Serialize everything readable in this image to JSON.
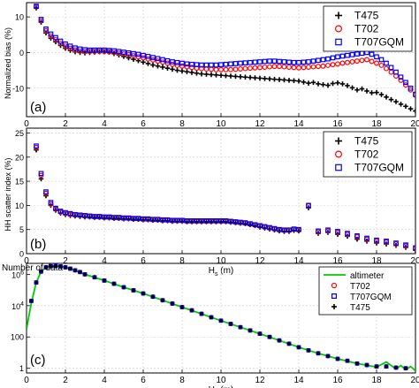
{
  "chart_data": [
    {
      "type": "scatter",
      "panel_label": "(a)",
      "ylabel": "Normalized bias (%)",
      "xlim": [
        0,
        20
      ],
      "ylim": [
        -18,
        14
      ],
      "x_ticks": [
        0,
        2,
        4,
        6,
        8,
        10,
        12,
        14,
        16,
        18,
        20
      ],
      "y_ticks": [
        10,
        0,
        -10
      ],
      "y_tick_labels": [
        "10",
        "0",
        "-10"
      ],
      "grid": true,
      "legend_position": "top-right",
      "x": [
        0.5,
        0.75,
        1.0,
        1.25,
        1.5,
        1.75,
        2.0,
        2.25,
        2.5,
        2.75,
        3.0,
        3.25,
        3.5,
        3.75,
        4.0,
        4.25,
        4.5,
        4.75,
        5.0,
        5.25,
        5.5,
        5.75,
        6.0,
        6.25,
        6.5,
        6.75,
        7.0,
        7.25,
        7.5,
        7.75,
        8.0,
        8.25,
        8.5,
        8.75,
        9.0,
        9.25,
        9.5,
        9.75,
        10.0,
        10.25,
        10.5,
        10.75,
        11.0,
        11.25,
        11.5,
        11.75,
        12.0,
        12.25,
        12.5,
        12.75,
        13.0,
        13.25,
        13.5,
        13.75,
        14.0,
        14.25,
        14.5,
        14.75,
        15.0,
        15.25,
        15.5,
        15.75,
        16.0,
        16.25,
        16.5,
        16.75,
        17.0,
        17.25,
        17.5,
        17.75,
        18.0,
        18.25,
        18.5,
        18.75,
        19.0,
        19.25,
        19.5,
        19.75,
        20.0
      ],
      "series": [
        {
          "name": "T475",
          "marker": "plus",
          "color": "#000000",
          "values": [
            12.5,
            8.5,
            5.5,
            4,
            3,
            2,
            1.2,
            0.6,
            0.2,
            0,
            -0.1,
            0,
            0.1,
            0.2,
            0.2,
            0.1,
            -0.3,
            -0.7,
            -1.1,
            -1.5,
            -1.9,
            -2.3,
            -2.7,
            -3.1,
            -3.5,
            -3.8,
            -4.1,
            -4.4,
            -4.7,
            -5,
            -5.2,
            -5.4,
            -5.6,
            -5.8,
            -6,
            -6.1,
            -6.2,
            -6.3,
            -6.4,
            -6.5,
            -6.6,
            -6.7,
            -6.8,
            -6.9,
            -7,
            -7.1,
            -7.2,
            -7.3,
            -7.4,
            -7.5,
            -7.6,
            -7.7,
            -7.8,
            -7.9,
            -8,
            -8.3,
            -8.6,
            -8.4,
            -8.8,
            -9,
            -9.2,
            -8.7,
            -8.5,
            -8.8,
            -9.3,
            -9.9,
            -10.5,
            -10.2,
            -10.8,
            -11.3,
            -11.2,
            -11.8,
            -12.5,
            -13.2,
            -13.8,
            -14.5,
            -15.1,
            -15.8,
            -16.4
          ]
        },
        {
          "name": "T702",
          "marker": "circle",
          "color": "#ff0000",
          "values": [
            12.8,
            8.9,
            6.1,
            4.6,
            3.6,
            2.6,
            1.8,
            1.2,
            0.7,
            0.4,
            0.3,
            0.3,
            0.3,
            0.3,
            0.3,
            0.2,
            0,
            -0.2,
            -0.4,
            -0.6,
            -0.9,
            -1.2,
            -1.5,
            -1.8,
            -2.1,
            -2.4,
            -2.7,
            -3,
            -3.3,
            -3.6,
            -3.8,
            -4,
            -4.2,
            -4.4,
            -4.5,
            -4.6,
            -4.7,
            -4.8,
            -4.8,
            -4.8,
            -4.8,
            -4.7,
            -4.6,
            -4.5,
            -4.4,
            -4.3,
            -4.2,
            -4.1,
            -4.0,
            -3.9,
            -3.9,
            -4.0,
            -4.1,
            -4.2,
            -4.3,
            -4.2,
            -4.1,
            -4.0,
            -3.9,
            -3.8,
            -3.6,
            -3.4,
            -3.2,
            -3.0,
            -2.8,
            -2.6,
            -2.4,
            -2.2,
            -2.0,
            -2.5,
            -3.0,
            -3.6,
            -4.5,
            -5.5,
            -6.6,
            -7.8,
            -9.1,
            -10.5,
            -12.0
          ]
        },
        {
          "name": "T707GQM",
          "marker": "square",
          "color": "#0000ff",
          "values": [
            13,
            9.3,
            6.6,
            5.2,
            4.2,
            3.2,
            2.4,
            1.8,
            1.3,
            1.0,
            0.8,
            0.7,
            0.7,
            0.7,
            0.7,
            0.6,
            0.5,
            0.3,
            0.1,
            -0.1,
            -0.3,
            -0.5,
            -0.8,
            -1.1,
            -1.4,
            -1.7,
            -2.0,
            -2.3,
            -2.6,
            -2.8,
            -3.0,
            -3.2,
            -3.3,
            -3.4,
            -3.5,
            -3.5,
            -3.5,
            -3.5,
            -3.4,
            -3.3,
            -3.2,
            -3.1,
            -3.0,
            -2.9,
            -2.8,
            -2.7,
            -2.6,
            -2.5,
            -2.4,
            -2.4,
            -2.5,
            -2.6,
            -2.7,
            -2.8,
            -2.8,
            -2.7,
            -2.6,
            -2.4,
            -2.2,
            -2.0,
            -1.8,
            -1.5,
            -1.2,
            -1.0,
            -0.8,
            -0.6,
            -0.4,
            -0.2,
            0.0,
            -0.5,
            -1.2,
            -2.0,
            -3.0,
            -4.2,
            -5.5,
            -6.9,
            -8.4,
            -10.0,
            -11.7
          ]
        }
      ]
    },
    {
      "type": "scatter",
      "panel_label": "(b)",
      "ylabel": "HH scatter index (%)",
      "xlabel": "H",
      "xlabel_subscript": "s",
      "xlabel_unit": " (m)",
      "xlim": [
        0,
        20
      ],
      "ylim": [
        0,
        26
      ],
      "x_ticks": [
        0,
        2,
        4,
        6,
        8,
        10,
        12,
        14,
        16,
        18,
        20
      ],
      "y_ticks": [
        0,
        5,
        10,
        15,
        20,
        25
      ],
      "grid": true,
      "legend_position": "top-right",
      "x": [
        0.5,
        0.75,
        1.0,
        1.25,
        1.5,
        1.75,
        2.0,
        2.25,
        2.5,
        2.75,
        3.0,
        3.25,
        3.5,
        3.75,
        4.0,
        4.25,
        4.5,
        4.75,
        5.0,
        5.25,
        5.5,
        5.75,
        6.0,
        6.25,
        6.5,
        6.75,
        7.0,
        7.25,
        7.5,
        7.75,
        8.0,
        8.25,
        8.5,
        8.75,
        9.0,
        9.25,
        9.5,
        9.75,
        10.0,
        10.25,
        10.5,
        10.75,
        11.0,
        11.25,
        11.5,
        11.75,
        12.0,
        12.25,
        12.5,
        12.75,
        13.0,
        13.25,
        13.5,
        13.75,
        14.0,
        14.5,
        15.0,
        15.5,
        16.0,
        16.5,
        17.0,
        17.5,
        18.0,
        18.5,
        19.0,
        19.5,
        20.0
      ],
      "series": [
        {
          "name": "T475",
          "marker": "plus",
          "color": "#000000",
          "values": [
            21.5,
            15.5,
            12,
            10,
            9,
            8.4,
            8.1,
            7.9,
            7.8,
            7.7,
            7.6,
            7.6,
            7.5,
            7.5,
            7.4,
            7.4,
            7.3,
            7.3,
            7.2,
            7.2,
            7.1,
            7.1,
            7.0,
            7.0,
            6.9,
            6.9,
            6.8,
            6.8,
            6.7,
            6.7,
            6.7,
            6.6,
            6.6,
            6.6,
            6.6,
            6.6,
            6.6,
            6.6,
            6.6,
            6.6,
            6.5,
            6.4,
            6.3,
            6.2,
            6.0,
            5.8,
            5.5,
            5.3,
            5.1,
            4.9,
            4.7,
            4.6,
            4.6,
            4.8,
            4.7,
            9.5,
            4.2,
            4.4,
            4.0,
            3.6,
            3.0,
            2.6,
            2.2,
            2.0,
            1.7,
            1.3,
            0.7
          ]
        },
        {
          "name": "T702",
          "marker": "circle",
          "color": "#ff0000",
          "values": [
            22,
            16.2,
            12.5,
            10.3,
            9.2,
            8.6,
            8.3,
            8.1,
            8.0,
            7.9,
            7.8,
            7.7,
            7.6,
            7.6,
            7.5,
            7.5,
            7.4,
            7.4,
            7.3,
            7.3,
            7.2,
            7.2,
            7.1,
            7.1,
            7.0,
            7.0,
            6.9,
            6.9,
            6.8,
            6.8,
            6.8,
            6.7,
            6.7,
            6.7,
            6.7,
            6.7,
            6.7,
            6.7,
            6.7,
            6.7,
            6.6,
            6.5,
            6.4,
            6.3,
            6.1,
            5.9,
            5.7,
            5.5,
            5.3,
            5.1,
            4.9,
            4.8,
            4.8,
            5.0,
            4.9,
            9.9,
            4.5,
            4.7,
            4.4,
            4.0,
            3.5,
            3.0,
            2.6,
            2.4,
            2.0,
            1.6,
            1.0
          ]
        },
        {
          "name": "T707GQM",
          "marker": "square",
          "color": "#0000ff",
          "values": [
            22.3,
            16.6,
            12.8,
            10.6,
            9.4,
            8.8,
            8.5,
            8.3,
            8.1,
            8.0,
            7.9,
            7.8,
            7.7,
            7.7,
            7.6,
            7.6,
            7.5,
            7.5,
            7.4,
            7.4,
            7.3,
            7.3,
            7.2,
            7.2,
            7.1,
            7.1,
            7.0,
            7.0,
            6.9,
            6.9,
            6.9,
            6.8,
            6.8,
            6.8,
            6.8,
            6.8,
            6.8,
            6.8,
            6.8,
            6.8,
            6.7,
            6.6,
            6.5,
            6.4,
            6.2,
            6.0,
            5.8,
            5.6,
            5.4,
            5.2,
            5.0,
            4.9,
            4.9,
            5.1,
            5.0,
            10.0,
            4.7,
            4.9,
            4.6,
            4.2,
            3.7,
            3.2,
            2.8,
            2.6,
            2.2,
            1.8,
            1.2
          ]
        }
      ]
    },
    {
      "type": "line",
      "panel_label": "(c)",
      "title": "Number of data",
      "xlabel": "H",
      "xlabel_subscript": "s",
      "xlabel_unit": " (m)",
      "xlim": [
        0,
        20
      ],
      "ylim": [
        0.5,
        5000000
      ],
      "yscale": "log",
      "x_ticks": [
        0,
        2,
        4,
        6,
        8,
        10,
        12,
        14,
        16,
        18,
        20
      ],
      "y_ticks": [
        1,
        100,
        10000,
        1000000
      ],
      "y_tick_base": "10",
      "y_tick_exponents": [
        "",
        "",
        "4",
        "6"
      ],
      "y_tick_plain": [
        "1",
        "100",
        "",
        ""
      ],
      "grid": true,
      "legend_position": "top-right",
      "altimeter": {
        "name": "altimeter",
        "color": "#00cc00",
        "x": [
          0,
          0.1,
          0.25,
          0.5,
          0.75,
          1.0,
          1.25,
          1.5,
          1.75,
          2.0,
          2.5,
          3.0,
          4.0,
          5.0,
          6.0,
          7.0,
          8.0,
          9.0,
          10.0,
          11.0,
          12.0,
          13.0,
          14.0,
          15.0,
          16.0,
          17.0,
          18.0,
          18.5,
          19.0,
          19.25,
          19.5,
          19.75,
          20.0
        ],
        "y": [
          300,
          1500,
          15000,
          300000,
          1500000,
          2800000,
          3300000,
          3400000,
          3200000,
          2800000,
          1800000,
          1000000,
          400000,
          150000,
          60000,
          22000,
          8000,
          3000,
          1100,
          420,
          160,
          60,
          22,
          9,
          4,
          2,
          1.2,
          2.5,
          0.9,
          1.5,
          0.8,
          1.3,
          0.7
        ]
      },
      "x": [
        0.25,
        0.5,
        0.75,
        1.0,
        1.25,
        1.5,
        1.75,
        2.0,
        2.25,
        2.5,
        2.75,
        3.0,
        3.5,
        4.0,
        4.5,
        5.0,
        5.5,
        6.0,
        6.5,
        7.0,
        7.5,
        8.0,
        8.5,
        9.0,
        9.5,
        10.0,
        10.5,
        11.0,
        11.5,
        12.0,
        12.5,
        13.0,
        13.5,
        14.0,
        14.5,
        15.0,
        15.5,
        16.0,
        16.5,
        17.0,
        17.5,
        18.0,
        18.5,
        19.0,
        19.5
      ],
      "series": [
        {
          "name": "T702",
          "marker": "circle",
          "color": "#ff0000",
          "values": [
            20000,
            300000,
            1500000,
            2800000,
            3300000,
            3400000,
            3200000,
            2800000,
            2300000,
            1800000,
            1400000,
            1000000,
            650000,
            400000,
            250000,
            150000,
            95000,
            60000,
            37000,
            22000,
            13500,
            8000,
            5000,
            3000,
            1800,
            1100,
            680,
            420,
            260,
            160,
            100,
            60,
            37,
            22,
            14,
            9,
            6,
            4,
            3,
            2,
            1.6,
            1.3,
            1.3,
            1.1,
            1.0
          ]
        },
        {
          "name": "T707GQM",
          "marker": "square",
          "color": "#0000ff",
          "values": [
            20000,
            300000,
            1500000,
            2800000,
            3300000,
            3400000,
            3200000,
            2800000,
            2300000,
            1800000,
            1400000,
            1000000,
            650000,
            400000,
            250000,
            150000,
            95000,
            60000,
            37000,
            22000,
            13500,
            8000,
            5000,
            3000,
            1800,
            1100,
            680,
            420,
            260,
            160,
            100,
            60,
            37,
            22,
            14,
            9,
            6,
            4,
            3,
            2,
            1.6,
            1.3,
            1.3,
            1.1,
            1.0
          ]
        },
        {
          "name": "T475",
          "marker": "plus",
          "color": "#000000",
          "values": [
            20000,
            300000,
            1500000,
            2800000,
            3300000,
            3400000,
            3200000,
            2800000,
            2300000,
            1800000,
            1400000,
            1000000,
            650000,
            400000,
            250000,
            150000,
            95000,
            60000,
            37000,
            22000,
            13500,
            8000,
            5000,
            3000,
            1800,
            1100,
            680,
            420,
            260,
            160,
            100,
            60,
            37,
            22,
            14,
            9,
            6,
            4,
            3,
            2,
            1.6,
            1.3,
            1.3,
            1.1,
            1.0
          ]
        }
      ]
    }
  ]
}
